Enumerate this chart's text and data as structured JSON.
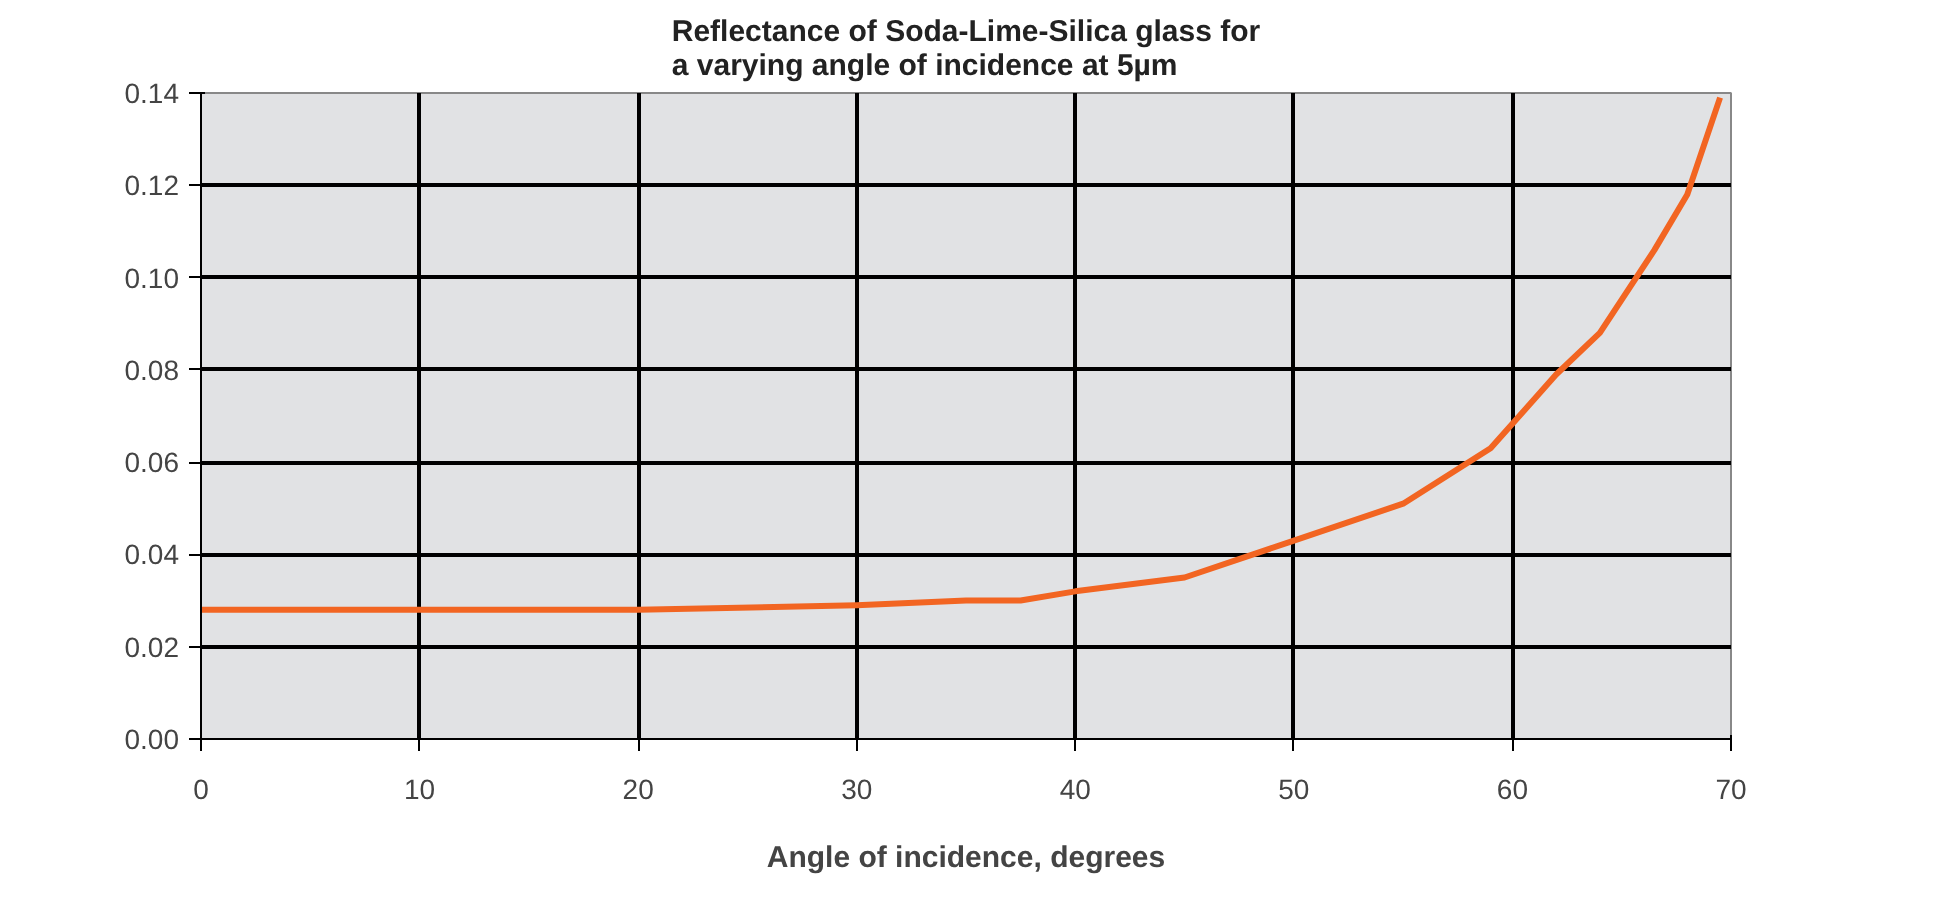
{
  "chart_data": {
    "type": "line",
    "title": "Reflectance of Soda-Lime-Silica glass for\na varying angle of incidence at 5µm",
    "xlabel": "Angle of incidence, degrees",
    "x": [
      0,
      10,
      20,
      30,
      35,
      37.5,
      40,
      45,
      50,
      55,
      59,
      62,
      64,
      66.5,
      68,
      69.5
    ],
    "series": [
      {
        "color": "#f26522",
        "values": [
          0.028,
          0.028,
          0.028,
          0.029,
          0.03,
          0.03,
          0.032,
          0.035,
          0.043,
          0.051,
          0.063,
          0.079,
          0.088,
          0.106,
          0.118,
          0.139
        ]
      }
    ],
    "xlim": [
      0,
      70
    ],
    "xticks": [
      0,
      10,
      20,
      30,
      40,
      50,
      60,
      70
    ],
    "ylim": [
      0,
      0.14
    ],
    "yticks": [
      {
        "value": 0,
        "label": "0.00"
      },
      {
        "value": 0.02,
        "label": "0.02"
      },
      {
        "value": 0.04,
        "label": "0.04"
      },
      {
        "value": 0.06,
        "label": "0.06"
      },
      {
        "value": 0.08,
        "label": "0.08"
      },
      {
        "value": 0.1,
        "label": "0.10"
      },
      {
        "value": 0.12,
        "label": "0.12"
      },
      {
        "value": 0.14,
        "label": "0.14"
      }
    ],
    "grid": true,
    "marker": "none",
    "line_style": "solid"
  }
}
